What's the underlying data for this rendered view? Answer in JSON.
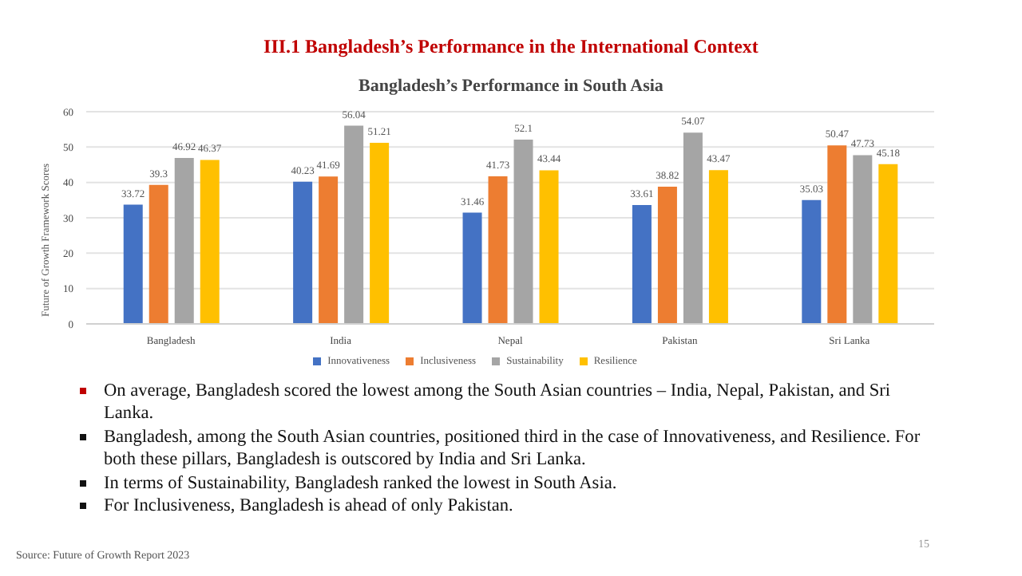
{
  "chart_data": {
    "type": "bar",
    "title": "III.1 Bangladesh’s Performance in the International Context",
    "subtitle": "Bangladesh’s Performance in South Asia",
    "ylabel": "Future of Growth Framework Scores",
    "categories": [
      "Bangladesh",
      "India",
      "Nepal",
      "Pakistan",
      "Sri Lanka"
    ],
    "series": [
      {
        "name": "Innovativeness",
        "color": "#4472c4",
        "values": [
          33.72,
          40.23,
          31.46,
          33.61,
          35.03
        ]
      },
      {
        "name": "Inclusiveness",
        "color": "#ed7d31",
        "values": [
          39.3,
          41.69,
          41.73,
          38.82,
          50.47
        ]
      },
      {
        "name": "Sustainability",
        "color": "#a5a5a5",
        "values": [
          46.92,
          56.04,
          52.1,
          54.07,
          47.73
        ]
      },
      {
        "name": "Resilience",
        "color": "#ffc000",
        "values": [
          46.37,
          51.21,
          43.44,
          43.47,
          45.18
        ]
      }
    ],
    "ylim": [
      0,
      60
    ],
    "yticks": [
      0,
      10,
      20,
      30,
      40,
      50,
      60
    ],
    "grid": "y",
    "legend": "bottom",
    "data_labels": true,
    "annotations": [
      "On average, Bangladesh scored the lowest among the South Asian countries – India, Nepal, Pakistan, and Sri Lanka.",
      "Bangladesh, among the South Asian countries, positioned third in the case of Innovativeness, and Resilience. For both these pillars, Bangladesh is outscored by India and Sri Lanka.",
      "In terms of Sustainability, Bangladesh ranked the lowest in South Asia.",
      "For Inclusiveness, Bangladesh is ahead of only Pakistan.",
      "Source: Future of Growth Report 2023",
      "15"
    ]
  }
}
